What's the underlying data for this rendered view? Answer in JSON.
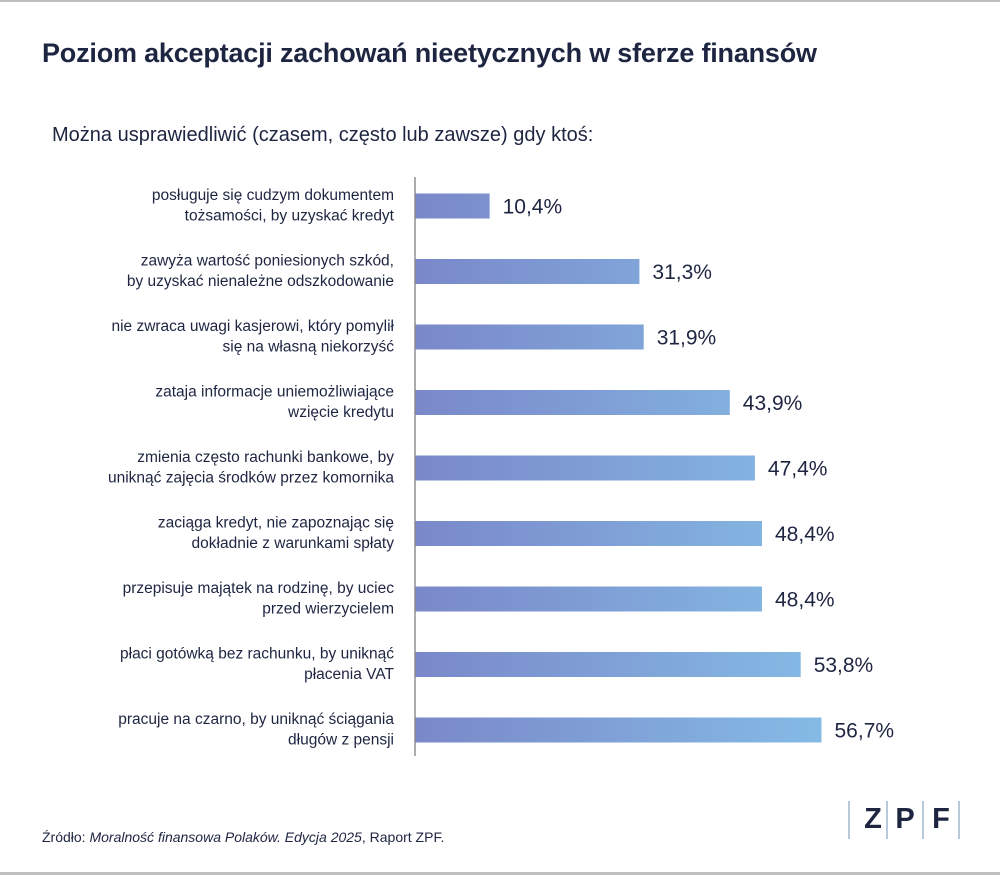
{
  "title": "Poziom akceptacji zachowań nieetycznych w sferze finansów",
  "subtitle": "Można usprawiedliwić (czasem, często lub zawsze) gdy ktoś:",
  "source": {
    "prefix": "Źródło: ",
    "publication": "Moralność finansowa Polaków. Edycja 2025",
    "suffix": ", Raport ZPF."
  },
  "logo": {
    "letters": [
      "Z",
      "P",
      "F"
    ]
  },
  "colors": {
    "text": "#1d2541",
    "bar_start": "#7a88c9",
    "bar_end": "#85bce6",
    "axis": "#888888"
  },
  "chart_data": {
    "type": "bar",
    "orientation": "horizontal",
    "xlim": [
      0,
      100
    ],
    "grid": false,
    "categories": [
      [
        "posługuje się cudzym dokumentem",
        "tożsamości, by uzyskać kredyt"
      ],
      [
        "zawyża wartość poniesionych szkód,",
        "by uzyskać nienależne odszkodowanie"
      ],
      [
        "nie zwraca uwagi kasjerowi, który pomylił",
        "się na własną niekorzyść"
      ],
      [
        "zataja informacje uniemożliwiające",
        "wzięcie kredytu"
      ],
      [
        "zmienia często rachunki bankowe, by",
        "uniknąć zajęcia środków przez komornika"
      ],
      [
        "zaciąga kredyt, nie zapoznając się",
        "dokładnie z warunkami spłaty"
      ],
      [
        "przepisuje majątek na rodzinę, by uciec",
        "przed wierzycielem"
      ],
      [
        "płaci gotówką bez rachunku, by uniknąć",
        "płacenia VAT"
      ],
      [
        "pracuje na czarno, by uniknąć ściągania",
        "długów z pensji"
      ]
    ],
    "values": [
      10.4,
      31.3,
      31.9,
      43.9,
      47.4,
      48.4,
      48.4,
      53.8,
      56.7
    ],
    "value_labels": [
      "10,4%",
      "31,3%",
      "31,9%",
      "43,9%",
      "47,4%",
      "48,4%",
      "48,4%",
      "53,8%",
      "56,7%"
    ]
  }
}
